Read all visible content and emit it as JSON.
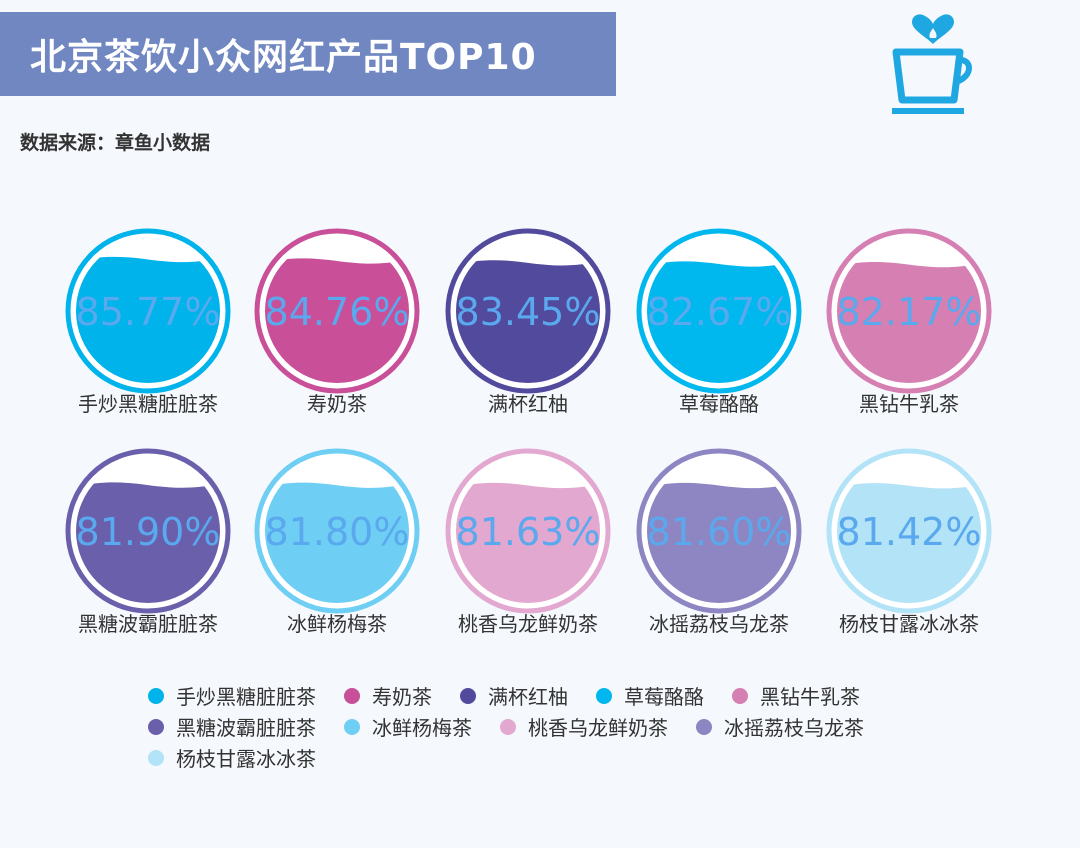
{
  "header": {
    "title": "北京茶饮小众网红产品TOP10",
    "source": "数据来源：章鱼小数据",
    "icon": "coffee-cup-heart-icon"
  },
  "colors": {
    "title_bg": "#7187c2",
    "value_text": "#5aa8ee"
  },
  "chart_data": {
    "type": "liquid-fill",
    "unit": "%",
    "categories": [
      "手炒黑糖脏脏茶",
      "寿奶茶",
      "满杯红柚",
      "草莓酪酪",
      "黑钻牛乳茶",
      "黑糖波霸脏脏茶",
      "冰鲜杨梅茶",
      "桃香乌龙鲜奶茶",
      "冰摇荔枝乌龙茶",
      "杨枝甘露冰冰茶"
    ],
    "values": [
      85.77,
      84.76,
      83.45,
      82.67,
      82.17,
      81.9,
      81.8,
      81.63,
      81.6,
      81.42
    ],
    "labels": [
      "85.77%",
      "84.76%",
      "83.45%",
      "82.67%",
      "82.17%",
      "81.90%",
      "81.80%",
      "81.63%",
      "81.60%",
      "81.42%"
    ],
    "colors": [
      "#00b3ea",
      "#c84f98",
      "#524a9d",
      "#00b8ee",
      "#d57fb3",
      "#6a5fab",
      "#6ecef3",
      "#e2a8cf",
      "#8d86c2",
      "#b3e3f7"
    ],
    "legend": [
      "手炒黑糖脏脏茶",
      "寿奶茶",
      "满杯红柚",
      "草莓酪酪",
      "黑钻牛乳茶",
      "黑糖波霸脏脏茶",
      "冰鲜杨梅茶",
      "桃香乌龙鲜奶茶",
      "冰摇荔枝乌龙茶",
      "杨枝甘露冰冰茶"
    ],
    "legend_placement": "bottom"
  }
}
